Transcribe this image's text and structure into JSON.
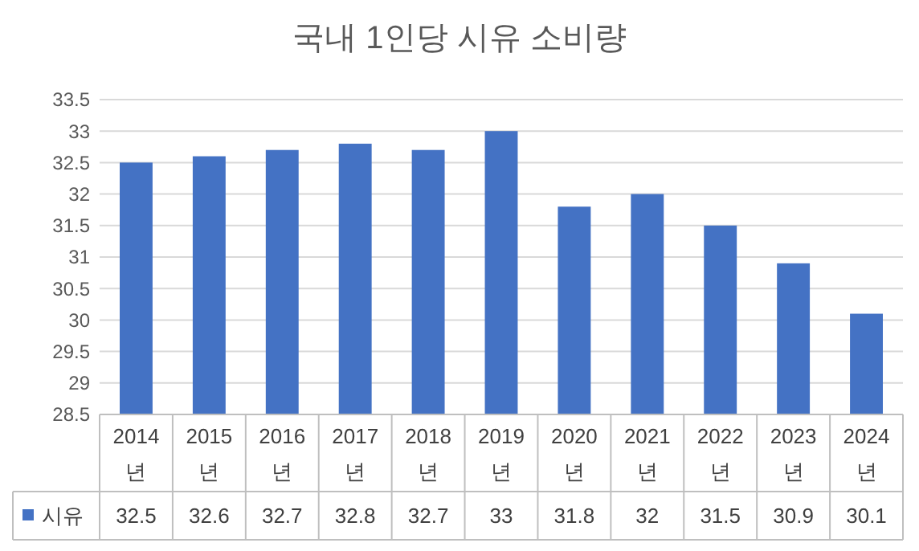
{
  "chart_data": {
    "type": "bar",
    "title": "국내 1인당 시유 소비량",
    "categories": [
      "2014년",
      "2015년",
      "2016년",
      "2017년",
      "2018년",
      "2019년",
      "2020년",
      "2021년",
      "2022년",
      "2023년",
      "2024년"
    ],
    "series": [
      {
        "name": "시유",
        "color": "#4472c4",
        "values": [
          32.5,
          32.6,
          32.7,
          32.8,
          32.7,
          33,
          31.8,
          32,
          31.5,
          30.9,
          30.1
        ]
      }
    ],
    "ylim": [
      28.5,
      33.5
    ],
    "yticks": [
      28.5,
      29,
      29.5,
      30,
      30.5,
      31,
      31.5,
      32,
      32.5,
      33,
      33.5
    ],
    "grid": "y",
    "legend": "bottom",
    "data_labels": true
  }
}
